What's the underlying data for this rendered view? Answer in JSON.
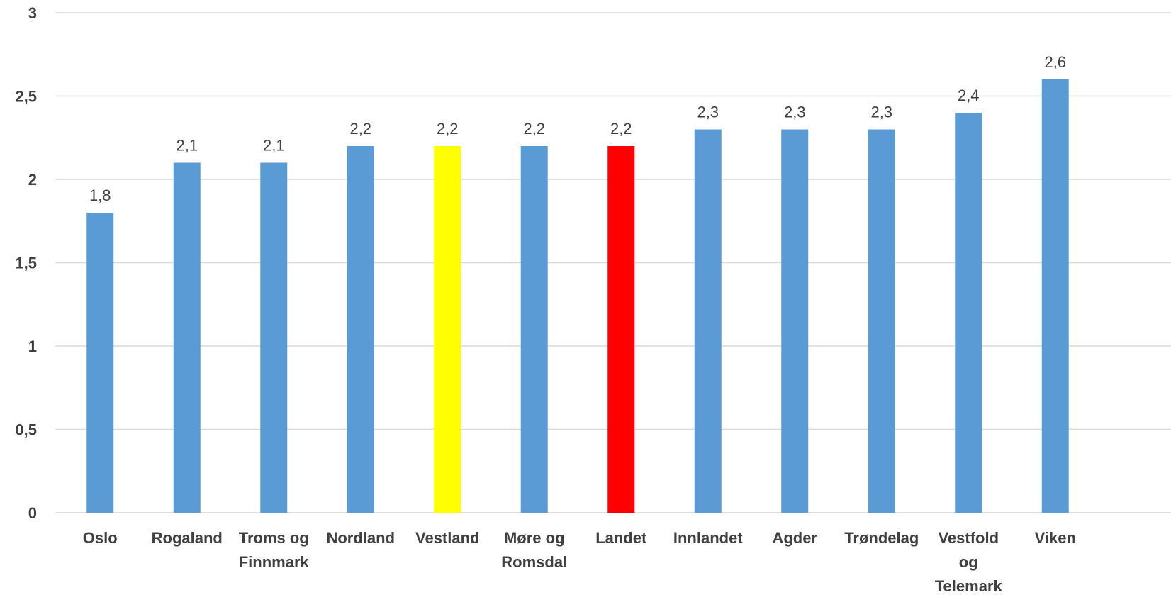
{
  "chart_data": {
    "type": "bar",
    "title": "",
    "xlabel": "",
    "ylabel": "",
    "ylim": [
      0,
      3
    ],
    "yticks": [
      "0",
      "0,5",
      "1",
      "1,5",
      "2",
      "2,5",
      "3"
    ],
    "ytick_values": [
      0,
      0.5,
      1,
      1.5,
      2,
      2.5,
      3
    ],
    "grid": true,
    "legend": "none",
    "categories": [
      [
        "Oslo"
      ],
      [
        "Rogaland"
      ],
      [
        "Troms og",
        "Finnmark"
      ],
      [
        "Nordland"
      ],
      [
        "Vestland"
      ],
      [
        "Møre og",
        "Romsdal"
      ],
      [
        "Landet"
      ],
      [
        "Innlandet"
      ],
      [
        "Agder"
      ],
      [
        "Trøndelag"
      ],
      [
        "Vestfold",
        "og",
        "Telemark"
      ],
      [
        "Viken"
      ]
    ],
    "values": [
      1.8,
      2.1,
      2.1,
      2.2,
      2.2,
      2.2,
      2.2,
      2.3,
      2.3,
      2.3,
      2.4,
      2.6
    ],
    "data_labels": [
      "1,8",
      "2,1",
      "2,1",
      "2,2",
      "2,2",
      "2,2",
      "2,2",
      "2,3",
      "2,3",
      "2,3",
      "2,4",
      "2,6"
    ],
    "colors": [
      "#5b9bd5",
      "#5b9bd5",
      "#5b9bd5",
      "#5b9bd5",
      "#ffff00",
      "#5b9bd5",
      "#ff0000",
      "#5b9bd5",
      "#5b9bd5",
      "#5b9bd5",
      "#5b9bd5",
      "#5b9bd5"
    ]
  }
}
